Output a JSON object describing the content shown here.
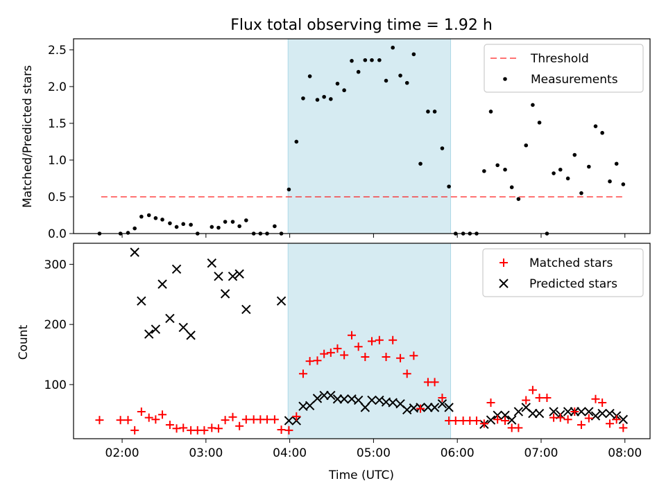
{
  "title": "Flux total observing time = 1.92 h",
  "chart_data": [
    {
      "type": "scatter",
      "panel": "top",
      "ylabel": "Matched/Predicted stars",
      "xlim": [
        1.42,
        8.3
      ],
      "ylim": [
        0,
        2.65
      ],
      "yticks": [
        0.0,
        0.5,
        1.0,
        1.5,
        2.0,
        2.5
      ],
      "ytick_labels": [
        "0.0",
        "0.5",
        "1.0",
        "1.5",
        "2.0",
        "2.5"
      ],
      "grid": false,
      "legend": {
        "placement": "upper right",
        "entries": [
          "Threshold",
          "Measurements"
        ]
      },
      "shaded_region": {
        "x": [
          3.98,
          5.92
        ],
        "color": "#add8e6"
      },
      "threshold": {
        "name": "Threshold",
        "value": 0.5,
        "x": [
          1.75,
          8.0
        ],
        "color": "#ff0000",
        "style": "dashed"
      },
      "series": [
        {
          "name": "Measurements",
          "color": "#000000",
          "marker": "dot",
          "x": [
            1.73,
            1.98,
            2.07,
            2.15,
            2.23,
            2.32,
            2.4,
            2.48,
            2.57,
            2.65,
            2.73,
            2.82,
            2.9,
            3.07,
            3.15,
            3.23,
            3.32,
            3.4,
            3.48,
            3.57,
            3.65,
            3.73,
            3.82,
            3.9,
            3.99,
            4.08,
            4.16,
            4.24,
            4.33,
            4.41,
            4.49,
            4.57,
            4.65,
            4.74,
            4.82,
            4.9,
            4.98,
            5.07,
            5.15,
            5.23,
            5.32,
            5.4,
            5.48,
            5.56,
            5.65,
            5.73,
            5.82,
            5.9,
            5.98,
            6.07,
            6.15,
            6.23,
            6.32,
            6.4,
            6.48,
            6.57,
            6.65,
            6.73,
            6.82,
            6.9,
            6.98,
            7.07,
            7.15,
            7.23,
            7.32,
            7.4,
            7.48,
            7.57,
            7.65,
            7.73,
            7.82,
            7.9,
            7.98
          ],
          "y": [
            0.0,
            0.0,
            0.01,
            0.07,
            0.23,
            0.25,
            0.21,
            0.19,
            0.14,
            0.09,
            0.13,
            0.12,
            0.0,
            0.09,
            0.08,
            0.16,
            0.16,
            0.1,
            0.18,
            0.0,
            0.0,
            0.0,
            0.1,
            0.0,
            0.6,
            1.25,
            1.84,
            2.14,
            1.82,
            1.86,
            1.83,
            2.04,
            1.95,
            2.35,
            2.2,
            2.36,
            2.36,
            2.36,
            2.08,
            2.53,
            2.15,
            2.05,
            2.44,
            0.95,
            1.66,
            1.66,
            1.16,
            0.64,
            0.0,
            0.0,
            0.0,
            0.0,
            0.85,
            1.66,
            0.93,
            0.87,
            0.63,
            0.47,
            1.2,
            1.75,
            1.51,
            0.0,
            0.82,
            0.87,
            0.75,
            1.07,
            0.55,
            0.91,
            1.46,
            1.37,
            0.71,
            0.95,
            0.67
          ]
        }
      ]
    },
    {
      "type": "scatter",
      "panel": "bottom",
      "xlabel": "Time (UTC)",
      "ylabel": "Count",
      "xlim": [
        1.42,
        8.3
      ],
      "ylim": [
        10,
        335
      ],
      "xticks": [
        2,
        3,
        4,
        5,
        6,
        7,
        8
      ],
      "xtick_labels": [
        "02:00",
        "03:00",
        "04:00",
        "05:00",
        "06:00",
        "07:00",
        "08:00"
      ],
      "yticks": [
        100,
        200,
        300
      ],
      "ytick_labels": [
        "100",
        "200",
        "300"
      ],
      "grid": false,
      "legend": {
        "placement": "upper right",
        "entries": [
          "Matched stars",
          "Predicted stars"
        ]
      },
      "shaded_region": {
        "x": [
          3.98,
          5.92
        ],
        "color": "#add8e6"
      },
      "series": [
        {
          "name": "Matched stars",
          "color": "#ff0000",
          "marker": "plus",
          "x": [
            1.73,
            1.98,
            2.07,
            2.15,
            2.23,
            2.32,
            2.4,
            2.48,
            2.57,
            2.65,
            2.73,
            2.82,
            2.9,
            2.98,
            3.07,
            3.15,
            3.23,
            3.32,
            3.4,
            3.48,
            3.57,
            3.65,
            3.73,
            3.82,
            3.9,
            3.99,
            4.08,
            4.16,
            4.24,
            4.33,
            4.41,
            4.49,
            4.57,
            4.65,
            4.74,
            4.82,
            4.9,
            4.98,
            5.07,
            5.15,
            5.23,
            5.32,
            5.4,
            5.48,
            5.56,
            5.65,
            5.73,
            5.82,
            5.9,
            5.98,
            6.07,
            6.15,
            6.23,
            6.32,
            6.4,
            6.48,
            6.57,
            6.65,
            6.73,
            6.82,
            6.9,
            6.98,
            7.07,
            7.15,
            7.23,
            7.32,
            7.4,
            7.48,
            7.57,
            7.65,
            7.73,
            7.82,
            7.9,
            7.98
          ],
          "y": [
            41,
            41,
            41,
            24,
            55,
            45,
            42,
            50,
            33,
            27,
            28,
            24,
            24,
            24,
            28,
            27,
            41,
            46,
            31,
            42,
            42,
            42,
            42,
            42,
            25,
            24,
            47,
            118,
            139,
            140,
            151,
            153,
            160,
            149,
            182,
            163,
            146,
            172,
            174,
            146,
            174,
            144,
            118,
            148,
            60,
            104,
            104,
            78,
            40,
            40,
            40,
            40,
            40,
            35,
            70,
            42,
            40,
            28,
            28,
            74,
            91,
            78,
            78,
            45,
            45,
            42,
            55,
            33,
            44,
            76,
            70,
            35,
            42,
            28
          ]
        },
        {
          "name": "Predicted stars",
          "color": "#000000",
          "marker": "x",
          "x": [
            2.15,
            2.23,
            2.32,
            2.4,
            2.48,
            2.57,
            2.65,
            2.73,
            2.82,
            3.07,
            3.15,
            3.23,
            3.32,
            3.4,
            3.48,
            3.9,
            3.99,
            4.08,
            4.16,
            4.24,
            4.33,
            4.41,
            4.49,
            4.57,
            4.65,
            4.74,
            4.82,
            4.9,
            4.98,
            5.07,
            5.15,
            5.23,
            5.32,
            5.4,
            5.48,
            5.56,
            5.65,
            5.73,
            5.82,
            5.9,
            6.32,
            6.4,
            6.48,
            6.57,
            6.65,
            6.73,
            6.82,
            6.9,
            6.98,
            7.15,
            7.23,
            7.32,
            7.4,
            7.48,
            7.57,
            7.65,
            7.73,
            7.82,
            7.9,
            7.98
          ],
          "y": [
            320,
            239,
            184,
            192,
            267,
            210,
            292,
            195,
            182,
            302,
            280,
            251,
            280,
            284,
            225,
            239,
            40,
            40,
            64,
            65,
            77,
            82,
            82,
            76,
            76,
            76,
            74,
            62,
            74,
            74,
            71,
            70,
            68,
            58,
            61,
            62,
            62,
            62,
            68,
            62,
            34,
            41,
            49,
            49,
            41,
            55,
            62,
            52,
            52,
            55,
            50,
            55,
            55,
            55,
            55,
            48,
            52,
            52,
            48,
            42
          ]
        }
      ]
    }
  ]
}
